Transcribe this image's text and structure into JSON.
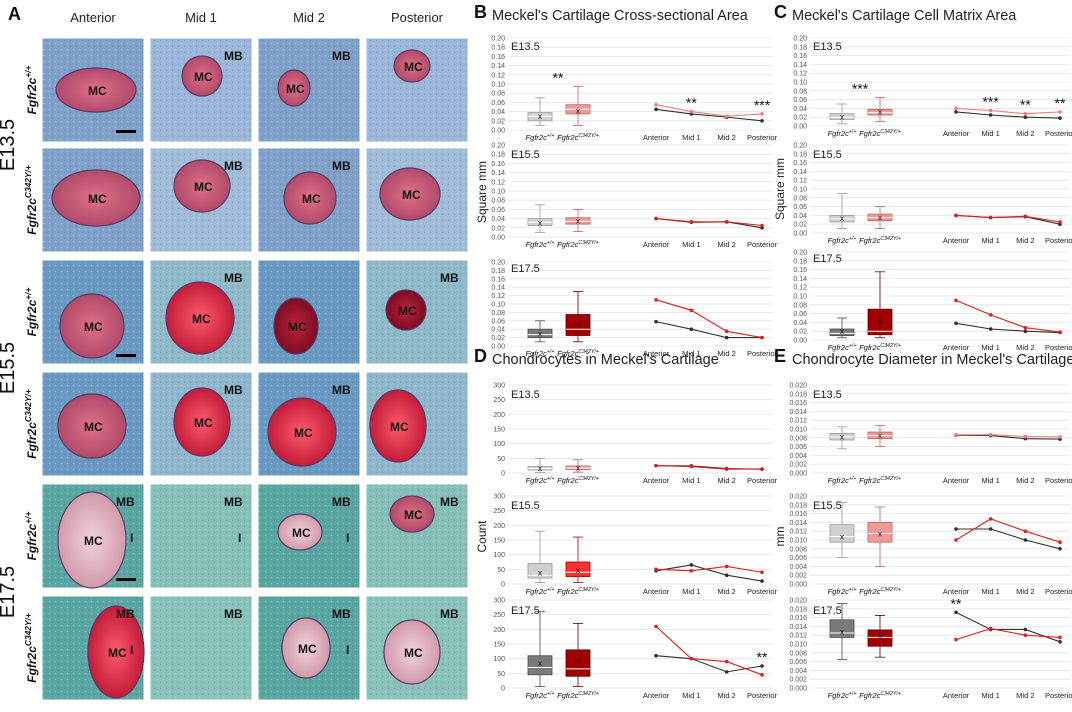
{
  "figure": {
    "colors": {
      "wt_light": "#d0d0d0",
      "wt_mid": "#a8a8a8",
      "wt_dark": "#7a7a7a",
      "mut_light": "#ef9a9a",
      "mut_mid": "#ff3030",
      "mut_dark": "#a00000",
      "wt_line": "#303030",
      "mut_line": "#e02020",
      "pink_line": "#f08080"
    },
    "panel_A": {
      "letter": "A",
      "columns": [
        "Anterior",
        "Mid 1",
        "Mid 2",
        "Posterior"
      ],
      "stages": [
        "E13.5",
        "E15.5",
        "E17.5"
      ],
      "genotypes": [
        "Fgfr2c+/+",
        "Fgfr2cC342Y/+"
      ],
      "cells": [
        [
          "MC",
          "MB MC",
          "MC MB",
          "MC"
        ],
        [
          "MC",
          "MC MB",
          "MC MB",
          "MC"
        ],
        [
          "MC",
          "MC MB",
          "MC",
          "MB MC"
        ],
        [
          "MC",
          "MC MB",
          "MC MB",
          "MC"
        ],
        [
          "I MC MB",
          "MB I",
          "MB MC I",
          "MB MC"
        ],
        [
          "I MC MB",
          "MB",
          "MB MC I",
          "MB MC"
        ]
      ]
    },
    "boxplot_labels": [
      "Fgfr2c+/+",
      "Fgfr2cC342Y/+"
    ],
    "line_labels": [
      "Anterior",
      "Mid 1",
      "Mid 2",
      "Posterior"
    ]
  },
  "chart_data": [
    {
      "panel": "B",
      "type": "bar",
      "title": "Meckel's Cartilage Cross-sectional Area",
      "ylabel": "Square mm",
      "categories": [
        "Anterior",
        "Mid 1",
        "Mid 2",
        "Posterior"
      ],
      "ylim": [
        0,
        0.2
      ],
      "ticks": [
        "0.00",
        "0.02",
        "0.04",
        "0.06",
        "0.08",
        "0.10",
        "0.12",
        "0.14",
        "0.16",
        "0.18",
        "0.20"
      ],
      "subplots": [
        {
          "stage": "E13.5",
          "box_sig": "**",
          "boxes": [
            {
              "genotype": "Fgfr2c+/+",
              "min": 0.01,
              "q1": 0.02,
              "median": 0.03,
              "q3": 0.038,
              "max": 0.07,
              "mean": 0.03
            },
            {
              "genotype": "Fgfr2cC342Y/+",
              "min": 0.01,
              "q1": 0.035,
              "median": 0.045,
              "q3": 0.055,
              "max": 0.095,
              "mean": 0.042
            }
          ],
          "series": [
            {
              "name": "Fgfr2c+/+",
              "values": [
                0.045,
                0.035,
                0.028,
                0.02
              ]
            },
            {
              "name": "Fgfr2cC342Y/+",
              "values": [
                0.055,
                0.04,
                0.03,
                0.035
              ]
            }
          ],
          "line_sigs": [
            "",
            "**",
            "",
            "***"
          ]
        },
        {
          "stage": "E15.5",
          "box_sig": "",
          "boxes": [
            {
              "genotype": "Fgfr2c+/+",
              "min": 0.01,
              "q1": 0.025,
              "median": 0.032,
              "q3": 0.04,
              "max": 0.07,
              "mean": 0.032
            },
            {
              "genotype": "Fgfr2cC342Y/+",
              "min": 0.012,
              "q1": 0.028,
              "median": 0.034,
              "q3": 0.042,
              "max": 0.06,
              "mean": 0.036
            }
          ],
          "series": [
            {
              "name": "Fgfr2c+/+",
              "values": [
                0.04,
                0.032,
                0.033,
                0.02
              ]
            },
            {
              "name": "Fgfr2cC342Y/+",
              "values": [
                0.04,
                0.033,
                0.033,
                0.025
              ]
            }
          ],
          "line_sigs": [
            "",
            "",
            "",
            ""
          ]
        },
        {
          "stage": "E17.5",
          "box_sig": "",
          "boxes": [
            {
              "genotype": "Fgfr2c+/+",
              "min": 0.01,
              "q1": 0.02,
              "median": 0.027,
              "q3": 0.04,
              "max": 0.06,
              "mean": 0.03
            },
            {
              "genotype": "Fgfr2cC342Y/+",
              "min": 0.01,
              "q1": 0.025,
              "median": 0.04,
              "q3": 0.075,
              "max": 0.13,
              "mean": 0.052
            }
          ],
          "series": [
            {
              "name": "Fgfr2c+/+",
              "values": [
                0.058,
                0.04,
                0.02,
                0.02
              ]
            },
            {
              "name": "Fgfr2cC342Y/+",
              "values": [
                0.11,
                0.085,
                0.035,
                0.02
              ]
            }
          ],
          "line_sigs": [
            "",
            "",
            "",
            ""
          ]
        }
      ]
    },
    {
      "panel": "C",
      "type": "bar",
      "title": "Meckel's Cartilage Cell Matrix Area",
      "ylabel": "Square mm",
      "categories": [
        "Anterior",
        "Mid 1",
        "Mid 2",
        "Posterior"
      ],
      "ylim": [
        0,
        0.2
      ],
      "ticks": [
        "0.00",
        "0.02",
        "0.04",
        "0.06",
        "0.08",
        "0.10",
        "0.12",
        "0.14",
        "0.16",
        "0.18",
        "0.20"
      ],
      "subplots": [
        {
          "stage": "E13.5",
          "box_sig": "***",
          "boxes": [
            {
              "genotype": "Fgfr2c+/+",
              "min": 0.005,
              "q1": 0.015,
              "median": 0.02,
              "q3": 0.028,
              "max": 0.05,
              "mean": 0.022
            },
            {
              "genotype": "Fgfr2cC342Y/+",
              "min": 0.01,
              "q1": 0.025,
              "median": 0.03,
              "q3": 0.038,
              "max": 0.065,
              "mean": 0.033
            }
          ],
          "series": [
            {
              "name": "Fgfr2c+/+",
              "values": [
                0.032,
                0.025,
                0.02,
                0.018
              ]
            },
            {
              "name": "Fgfr2cC342Y/+",
              "values": [
                0.04,
                0.035,
                0.028,
                0.032
              ]
            }
          ],
          "line_sigs": [
            "",
            "***",
            "**",
            "**"
          ]
        },
        {
          "stage": "E15.5",
          "box_sig": "",
          "boxes": [
            {
              "genotype": "Fgfr2c+/+",
              "min": 0.01,
              "q1": 0.025,
              "median": 0.032,
              "q3": 0.04,
              "max": 0.09,
              "mean": 0.034
            },
            {
              "genotype": "Fgfr2cC342Y/+",
              "min": 0.01,
              "q1": 0.028,
              "median": 0.035,
              "q3": 0.043,
              "max": 0.06,
              "mean": 0.036
            }
          ],
          "series": [
            {
              "name": "Fgfr2c+/+",
              "values": [
                0.04,
                0.035,
                0.037,
                0.02
              ]
            },
            {
              "name": "Fgfr2cC342Y/+",
              "values": [
                0.04,
                0.035,
                0.038,
                0.025
              ]
            }
          ],
          "line_sigs": [
            "",
            "",
            "",
            ""
          ]
        },
        {
          "stage": "E17.5",
          "box_sig": "",
          "boxes": [
            {
              "genotype": "Fgfr2c+/+",
              "min": 0.005,
              "q1": 0.01,
              "median": 0.015,
              "q3": 0.025,
              "max": 0.05,
              "mean": 0.02
            },
            {
              "genotype": "Fgfr2cC342Y/+",
              "min": 0.005,
              "q1": 0.012,
              "median": 0.02,
              "q3": 0.07,
              "max": 0.155,
              "mean": 0.042
            }
          ],
          "series": [
            {
              "name": "Fgfr2c+/+",
              "values": [
                0.038,
                0.025,
                0.02,
                0.017
              ]
            },
            {
              "name": "Fgfr2cC342Y/+",
              "values": [
                0.09,
                0.057,
                0.028,
                0.018
              ]
            }
          ],
          "line_sigs": [
            "",
            "",
            "",
            ""
          ]
        }
      ]
    },
    {
      "panel": "D",
      "type": "bar",
      "title": "Chondrocytes in Meckel's Cartilage",
      "ylabel": "Count",
      "categories": [
        "Anterior",
        "Mid 1",
        "Mid 2",
        "Posterior"
      ],
      "ylim": [
        0,
        300
      ],
      "ticks": [
        "0",
        "50",
        "100",
        "150",
        "200",
        "250",
        "300"
      ],
      "subplots": [
        {
          "stage": "E13.5",
          "box_sig": "",
          "boxes": [
            {
              "genotype": "Fgfr2c+/+",
              "min": 2,
              "q1": 10,
              "median": 15,
              "q3": 22,
              "max": 50,
              "mean": 17
            },
            {
              "genotype": "Fgfr2cC342Y/+",
              "min": 3,
              "q1": 12,
              "median": 17,
              "q3": 24,
              "max": 45,
              "mean": 19
            }
          ],
          "series": [
            {
              "name": "Fgfr2c+/+",
              "values": [
                25,
                24,
                15,
                13
              ]
            },
            {
              "name": "Fgfr2cC342Y/+",
              "values": [
                25,
                22,
                13,
                14
              ]
            }
          ],
          "line_sigs": [
            "",
            "",
            "",
            ""
          ]
        },
        {
          "stage": "E15.5",
          "box_sig": "",
          "boxes": [
            {
              "genotype": "Fgfr2c+/+",
              "min": 5,
              "q1": 20,
              "median": 30,
              "q3": 70,
              "max": 180,
              "mean": 40
            },
            {
              "genotype": "Fgfr2cC342Y/+",
              "min": 5,
              "q1": 25,
              "median": 40,
              "q3": 75,
              "max": 160,
              "mean": 48
            }
          ],
          "series": [
            {
              "name": "Fgfr2c+/+",
              "values": [
                45,
                65,
                30,
                10
              ]
            },
            {
              "name": "Fgfr2cC342Y/+",
              "values": [
                50,
                45,
                60,
                40
              ]
            }
          ],
          "line_sigs": [
            "",
            "",
            "",
            ""
          ]
        },
        {
          "stage": "E17.5",
          "box_sig": "",
          "boxes": [
            {
              "genotype": "Fgfr2c+/+",
              "min": 5,
              "q1": 45,
              "median": 70,
              "q3": 110,
              "max": 260,
              "mean": 85
            },
            {
              "genotype": "Fgfr2cC342Y/+",
              "min": 5,
              "q1": 40,
              "median": 65,
              "q3": 130,
              "max": 220,
              "mean": 95
            }
          ],
          "series": [
            {
              "name": "Fgfr2c+/+",
              "values": [
                110,
                100,
                55,
                75
              ]
            },
            {
              "name": "Fgfr2cC342Y/+",
              "values": [
                210,
                100,
                90,
                45
              ]
            }
          ],
          "line_sigs": [
            "",
            "",
            "",
            "**"
          ]
        }
      ]
    },
    {
      "panel": "E",
      "type": "bar",
      "title": "Chondrocyte Diameter in Meckel's Cartilage",
      "ylabel": "mm",
      "categories": [
        "Anterior",
        "Mid 1",
        "Mid 2",
        "Posterior"
      ],
      "ylim": [
        0,
        0.02
      ],
      "ticks": [
        "0.000",
        "0.002",
        "0.004",
        "0.006",
        "0.008",
        "0.010",
        "0.012",
        "0.014",
        "0.016",
        "0.018",
        "0.020"
      ],
      "subplots": [
        {
          "stage": "E13.5",
          "box_sig": "",
          "boxes": [
            {
              "genotype": "Fgfr2c+/+",
              "min": 0.0055,
              "q1": 0.0075,
              "median": 0.0082,
              "q3": 0.009,
              "max": 0.0105,
              "mean": 0.0083
            },
            {
              "genotype": "Fgfr2cC342Y/+",
              "min": 0.006,
              "q1": 0.0078,
              "median": 0.0085,
              "q3": 0.0093,
              "max": 0.0108,
              "mean": 0.0086
            }
          ],
          "series": [
            {
              "name": "Fgfr2c+/+",
              "values": [
                0.0086,
                0.0085,
                0.0078,
                0.0077
              ]
            },
            {
              "name": "Fgfr2cC342Y/+",
              "values": [
                0.0087,
                0.0087,
                0.0083,
                0.0082
              ]
            }
          ],
          "line_sigs": [
            "",
            "",
            "",
            ""
          ]
        },
        {
          "stage": "E15.5",
          "box_sig": "",
          "boxes": [
            {
              "genotype": "Fgfr2c+/+",
              "min": 0.006,
              "q1": 0.0095,
              "median": 0.0108,
              "q3": 0.0135,
              "max": 0.0185,
              "mean": 0.0108
            },
            {
              "genotype": "Fgfr2cC342Y/+",
              "min": 0.004,
              "q1": 0.0095,
              "median": 0.0115,
              "q3": 0.014,
              "max": 0.0175,
              "mean": 0.0115
            }
          ],
          "series": [
            {
              "name": "Fgfr2c+/+",
              "values": [
                0.0125,
                0.0125,
                0.01,
                0.008
              ]
            },
            {
              "name": "Fgfr2cC342Y/+",
              "values": [
                0.01,
                0.0148,
                0.012,
                0.0095
              ]
            }
          ],
          "line_sigs": [
            "",
            "",
            "",
            ""
          ]
        },
        {
          "stage": "E17.5",
          "box_sig": "",
          "boxes": [
            {
              "genotype": "Fgfr2c+/+",
              "min": 0.0065,
              "q1": 0.0115,
              "median": 0.0125,
              "q3": 0.0155,
              "max": 0.0192,
              "mean": 0.0128
            },
            {
              "genotype": "Fgfr2cC342Y/+",
              "min": 0.007,
              "q1": 0.0095,
              "median": 0.0115,
              "q3": 0.0132,
              "max": 0.0165,
              "mean": 0.012
            }
          ],
          "series": [
            {
              "name": "Fgfr2c+/+",
              "values": [
                0.0172,
                0.0133,
                0.0133,
                0.0105
              ]
            },
            {
              "name": "Fgfr2cC342Y/+",
              "values": [
                0.011,
                0.0135,
                0.012,
                0.0115
              ]
            }
          ],
          "line_sigs": [
            "**",
            "",
            "",
            ""
          ]
        }
      ]
    }
  ]
}
